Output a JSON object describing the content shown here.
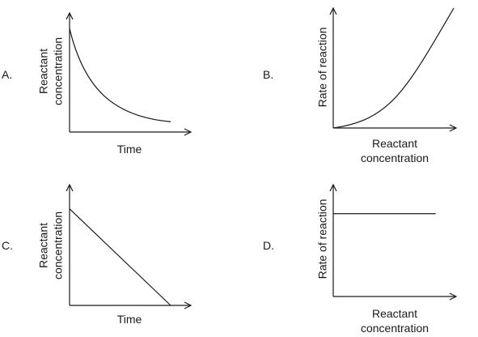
{
  "chart_data": [
    {
      "option": "A.",
      "type": "line",
      "xlabel": "Time",
      "ylabel": [
        "Reactant",
        "concentration"
      ],
      "shape": "exponential-decay",
      "x": [
        0,
        0.1,
        0.2,
        0.3,
        0.4,
        0.5,
        0.6,
        0.7,
        0.8,
        0.9,
        1.0
      ],
      "y": [
        1.0,
        0.78,
        0.61,
        0.48,
        0.38,
        0.3,
        0.24,
        0.19,
        0.15,
        0.12,
        0.1
      ],
      "xlim": [
        0,
        1.2
      ],
      "ylim": [
        0,
        1.15
      ]
    },
    {
      "option": "B.",
      "type": "line",
      "xlabel": [
        "Reactant",
        "concentration"
      ],
      "ylabel": "Rate of reaction",
      "shape": "exponential-growth",
      "x": [
        0,
        0.1,
        0.2,
        0.3,
        0.4,
        0.5,
        0.6,
        0.7,
        0.8,
        0.9,
        1.0
      ],
      "y": [
        0.0,
        0.05,
        0.1,
        0.17,
        0.25,
        0.34,
        0.45,
        0.58,
        0.72,
        0.88,
        1.05
      ],
      "xlim": [
        0,
        1.02
      ],
      "ylim": [
        0,
        1.05
      ]
    },
    {
      "option": "C.",
      "type": "line",
      "xlabel": "Time",
      "ylabel": [
        "Reactant",
        "concentration"
      ],
      "shape": "linear-decrease",
      "x": [
        0,
        1.0
      ],
      "y": [
        1.0,
        0.0
      ],
      "xlim": [
        0,
        1.2
      ],
      "ylim": [
        0,
        1.25
      ]
    },
    {
      "option": "D.",
      "type": "line",
      "xlabel": [
        "Reactant",
        "concentration"
      ],
      "ylabel": "Rate of reaction",
      "shape": "constant",
      "x": [
        0,
        1.0
      ],
      "y": [
        1.0,
        1.0
      ],
      "xlim": [
        0,
        1.2
      ],
      "ylim": [
        0,
        1.35
      ]
    }
  ]
}
